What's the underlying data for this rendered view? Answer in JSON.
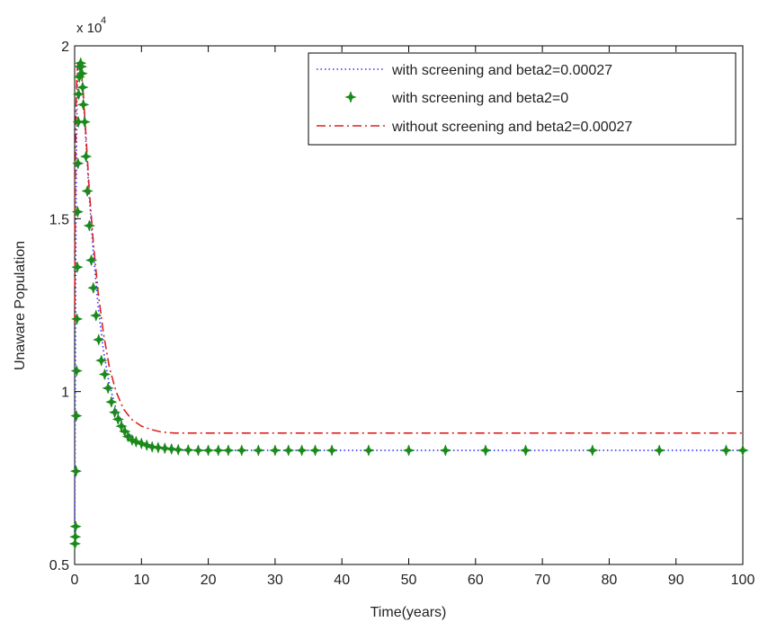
{
  "chart_data": {
    "type": "line",
    "xlabel": "Time(years)",
    "ylabel": "Unaware Population",
    "scale_label_base": "x 10",
    "scale_label_exp": "4",
    "xlim": [
      0,
      100
    ],
    "ylim": [
      0.5,
      2.0
    ],
    "xticks": [
      0,
      10,
      20,
      30,
      40,
      50,
      60,
      70,
      80,
      90,
      100
    ],
    "xtick_labels": [
      "0",
      "10",
      "20",
      "30",
      "40",
      "50",
      "60",
      "70",
      "80",
      "90",
      "100"
    ],
    "yticks": [
      0.5,
      1.0,
      1.5,
      2.0
    ],
    "ytick_labels": [
      "0.5",
      "1",
      "1.5",
      "2"
    ],
    "grid": false,
    "legend_position": "top-right",
    "series": [
      {
        "name": "with screening and beta2=0.00027",
        "style": "dotted",
        "color": "#3333ff",
        "x": [
          0,
          0.1,
          0.2,
          0.35,
          0.5,
          0.7,
          1.0,
          1.3,
          1.7,
          2.2,
          2.8,
          3.5,
          4.3,
          5.2,
          6.2,
          7.3,
          8.5,
          10,
          11.5,
          13,
          15,
          17,
          20,
          25,
          30,
          35,
          40,
          50,
          60,
          70,
          80,
          90,
          100
        ],
        "y": [
          0.55,
          1.0,
          1.5,
          1.85,
          1.94,
          1.95,
          1.93,
          1.85,
          1.72,
          1.56,
          1.4,
          1.25,
          1.12,
          1.02,
          0.95,
          0.9,
          0.87,
          0.85,
          0.84,
          0.834,
          0.831,
          0.83,
          0.83,
          0.83,
          0.83,
          0.83,
          0.83,
          0.83,
          0.83,
          0.83,
          0.83,
          0.83,
          0.83
        ]
      },
      {
        "name": "with screening and beta2=0",
        "style": "markers",
        "color": "#1a8a1a",
        "x": [
          0.05,
          0.1,
          0.15,
          0.2,
          0.25,
          0.3,
          0.35,
          0.4,
          0.45,
          0.5,
          0.55,
          0.6,
          0.7,
          0.8,
          0.9,
          1.0,
          1.1,
          1.2,
          1.3,
          1.5,
          1.7,
          1.9,
          2.2,
          2.5,
          2.8,
          3.2,
          3.6,
          4.0,
          4.5,
          5.0,
          5.5,
          6.0,
          6.5,
          7.0,
          7.5,
          8.0,
          8.6,
          9.2,
          10.0,
          10.8,
          11.6,
          12.5,
          13.5,
          14.5,
          15.5,
          17,
          18.5,
          20,
          21.5,
          23,
          25,
          27.5,
          30,
          32,
          34,
          36,
          38.5,
          44,
          50,
          55.5,
          61.5,
          67.5,
          77.5,
          87.5,
          97.5,
          100
        ],
        "y": [
          0.56,
          0.58,
          0.61,
          0.77,
          0.93,
          1.06,
          1.21,
          1.36,
          1.52,
          1.66,
          1.78,
          1.86,
          1.91,
          1.94,
          1.95,
          1.94,
          1.92,
          1.88,
          1.83,
          1.78,
          1.68,
          1.58,
          1.48,
          1.38,
          1.3,
          1.22,
          1.15,
          1.09,
          1.05,
          1.01,
          0.97,
          0.94,
          0.92,
          0.9,
          0.885,
          0.87,
          0.86,
          0.855,
          0.85,
          0.845,
          0.84,
          0.838,
          0.836,
          0.834,
          0.832,
          0.831,
          0.83,
          0.83,
          0.83,
          0.83,
          0.83,
          0.83,
          0.83,
          0.83,
          0.83,
          0.83,
          0.83,
          0.83,
          0.83,
          0.83,
          0.83,
          0.83,
          0.83,
          0.83,
          0.83,
          0.83
        ]
      },
      {
        "name": "without screening and beta2=0.00027",
        "style": "dashdot",
        "color": "#dd2222",
        "x": [
          0,
          0.1,
          0.2,
          0.35,
          0.5,
          0.7,
          1.0,
          1.3,
          1.7,
          2.2,
          2.8,
          3.5,
          4.3,
          5.2,
          6.2,
          7.3,
          8.5,
          10,
          11.5,
          13,
          15,
          17,
          20,
          30,
          40,
          50,
          60,
          70,
          80,
          90,
          100
        ],
        "y": [
          1.2,
          1.6,
          1.82,
          1.92,
          1.95,
          1.95,
          1.93,
          1.86,
          1.74,
          1.58,
          1.43,
          1.29,
          1.17,
          1.07,
          1.0,
          0.95,
          0.92,
          0.9,
          0.89,
          0.883,
          0.88,
          0.88,
          0.88,
          0.88,
          0.88,
          0.88,
          0.88,
          0.88,
          0.88,
          0.88,
          0.88
        ]
      }
    ]
  }
}
